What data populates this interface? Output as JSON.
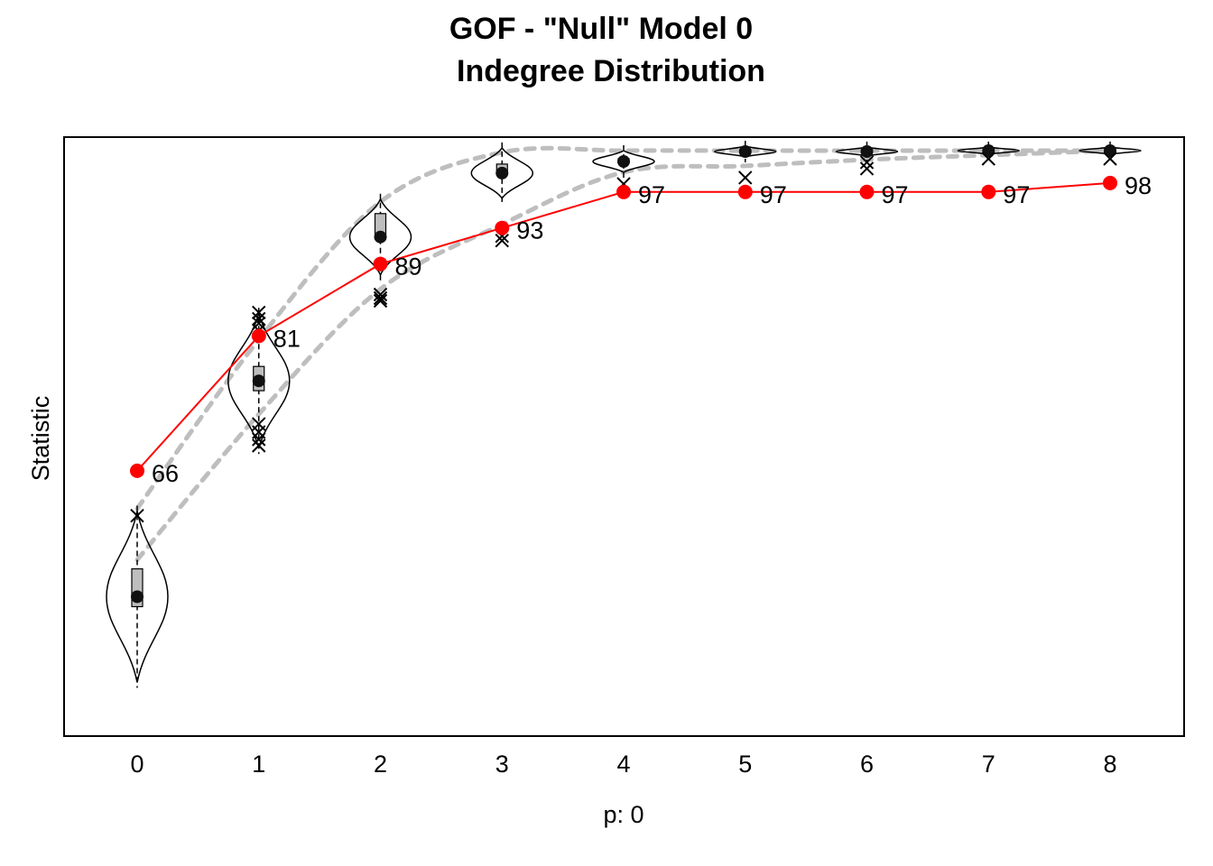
{
  "chart_data": {
    "type": "line",
    "title": "GOF - \"Null\" Model 0",
    "subtitle": "Indegree Distribution",
    "xlabel": "p: 0",
    "ylabel": "Statistic",
    "x": [
      0,
      1,
      2,
      3,
      4,
      5,
      6,
      7,
      8
    ],
    "x_tick_labels": [
      "0",
      "1",
      "2",
      "3",
      "4",
      "5",
      "6",
      "7",
      "8"
    ],
    "ylim": [
      37,
      102
    ],
    "y_ticks_shown": false,
    "grid": false,
    "legend": "none",
    "series": [
      {
        "role": "observed",
        "color": "#ff0000",
        "values": [
          66,
          81,
          89,
          93,
          97,
          97,
          97,
          97,
          98
        ],
        "data_labels": [
          "66",
          "81",
          "89",
          "93",
          "97",
          "97",
          "97",
          "97",
          "98"
        ]
      }
    ],
    "simulated": {
      "color": "#000000",
      "medians": [
        52,
        76,
        92,
        99.1,
        100.4,
        101.5,
        101.5,
        101.6,
        101.6
      ],
      "q1": [
        50.9,
        74.9,
        91.9,
        99.0,
        100.3,
        101.4,
        101.4,
        101.5,
        101.5
      ],
      "q3": [
        55.1,
        77.6,
        94.6,
        100.1,
        100.7,
        101.6,
        101.7,
        101.7,
        101.7
      ],
      "outliers": [
        [
          0,
          61
        ],
        [
          1,
          83.6
        ],
        [
          1,
          82.9
        ],
        [
          1,
          82.4
        ],
        [
          1,
          81.6
        ],
        [
          1,
          71.2
        ],
        [
          1,
          70.3
        ],
        [
          1,
          69.5
        ],
        [
          1,
          68.8
        ],
        [
          2,
          85.6
        ],
        [
          2,
          85.2
        ],
        [
          2,
          84.9
        ],
        [
          3,
          92.1
        ],
        [
          3,
          91.6
        ],
        [
          4,
          97.9
        ],
        [
          5,
          98.6
        ],
        [
          6,
          99.6
        ],
        [
          6,
          100.3
        ],
        [
          7,
          100.7
        ],
        [
          8,
          100.7
        ]
      ],
      "lower_95": [
        56.1,
        72.3,
        86.2,
        93.4,
        99.2,
        99.9,
        100.6,
        101.1,
        101.6
      ],
      "upper_95": [
        61.8,
        80.6,
        95.9,
        101.4,
        101.6,
        101.6,
        101.6,
        101.6,
        101.6
      ],
      "band_color": "#bebebe"
    }
  }
}
